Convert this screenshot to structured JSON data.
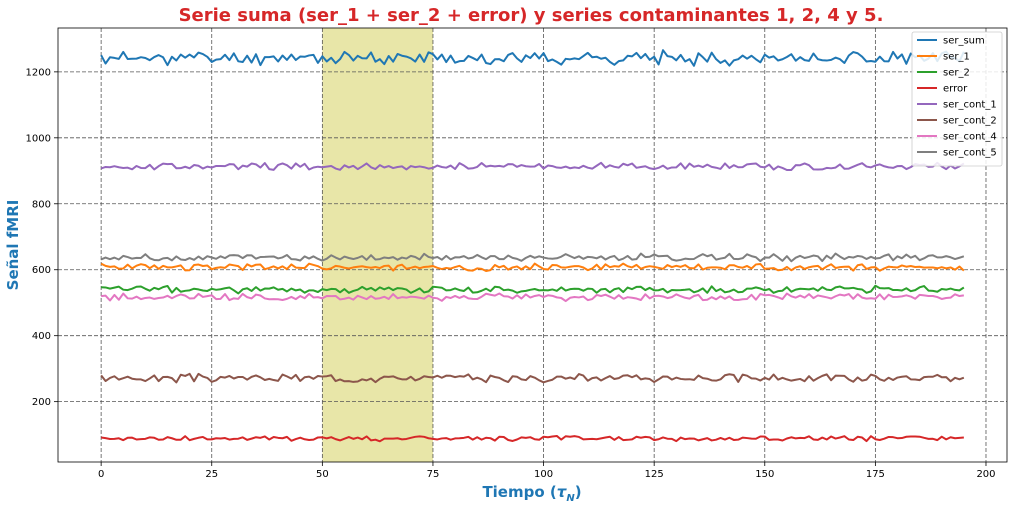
{
  "chart_data": {
    "type": "line",
    "title": "Serie suma (ser_1 + ser_2 + error) y series contaminantes 1, 2, 4 y 5.",
    "title_color": "#d62728",
    "xlabel_main": "Tiempo (",
    "xlabel_tau": "τ",
    "xlabel_sub": "N",
    "xlabel_close": ")",
    "ylabel": "Señal fMRI",
    "label_color": "#1f77b4",
    "xlim": [
      -9.75,
      204.75
    ],
    "ylim": [
      17,
      1333
    ],
    "xticks": [
      0,
      25,
      50,
      75,
      100,
      125,
      150,
      175,
      200
    ],
    "yticks": [
      200,
      400,
      600,
      800,
      1000,
      1200
    ],
    "grid": true,
    "highlight_span": {
      "x_start": 50,
      "x_end": 75,
      "color": "#e8e6a8"
    },
    "legend_position": "upper right",
    "series": [
      {
        "name": "ser_sum",
        "color": "#1f77b4",
        "mean": 1242,
        "amp": 15,
        "seed": 11
      },
      {
        "name": "ser_1",
        "color": "#ff7f0e",
        "mean": 608,
        "amp": 8,
        "seed": 23
      },
      {
        "name": "ser_2",
        "color": "#2ca02c",
        "mean": 540,
        "amp": 8,
        "seed": 37
      },
      {
        "name": "error",
        "color": "#d62728",
        "mean": 88,
        "amp": 6,
        "seed": 41
      },
      {
        "name": "ser_cont_1",
        "color": "#9467bd",
        "mean": 913,
        "amp": 8,
        "seed": 53
      },
      {
        "name": "ser_cont_2",
        "color": "#8c564b",
        "mean": 272,
        "amp": 9,
        "seed": 67
      },
      {
        "name": "ser_cont_4",
        "color": "#e377c2",
        "mean": 517,
        "amp": 8,
        "seed": 79
      },
      {
        "name": "ser_cont_5",
        "color": "#7f7f7f",
        "mean": 637,
        "amp": 8,
        "seed": 83
      }
    ],
    "n_points": 196
  }
}
